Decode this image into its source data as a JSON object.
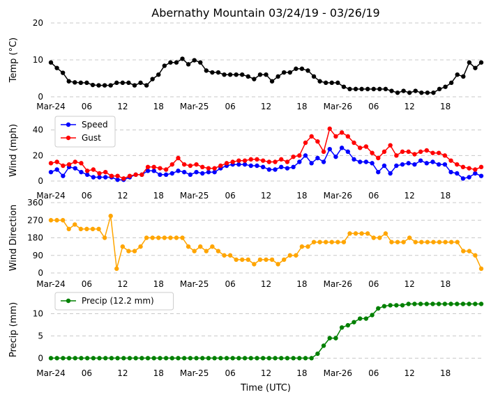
{
  "chart_data": {
    "type": "line",
    "title": "Abernathy Mountain 03/24/19 - 03/26/19",
    "xlabel": "Time (UTC)",
    "x_tick_labels": [
      "Mar-24",
      "06",
      "12",
      "18",
      "Mar-25",
      "06",
      "12",
      "18",
      "Mar-26",
      "06",
      "12",
      "18"
    ],
    "x_tick_hours": [
      0,
      6,
      12,
      18,
      24,
      30,
      36,
      42,
      48,
      54,
      60,
      66
    ],
    "x_range_hours": [
      0,
      72
    ],
    "panels": [
      {
        "ylabel": "Temp (°C)",
        "ylim": [
          0,
          20
        ],
        "yticks": [
          0,
          10,
          20
        ],
        "series": [
          {
            "name": "Temp",
            "color": "#000000",
            "legend": false,
            "values": [
              9.3,
              7.8,
              6.5,
              4.2,
              3.9,
              3.8,
              3.8,
              3.2,
              3.1,
              3.1,
              3.1,
              3.8,
              3.8,
              3.8,
              3.1,
              3.8,
              3.1,
              4.8,
              6.0,
              8.4,
              9.3,
              9.3,
              10.3,
              8.8,
              9.9,
              9.3,
              7.1,
              6.6,
              6.6,
              6.0,
              6.0,
              6.0,
              6.0,
              5.5,
              4.8,
              6.0,
              6.0,
              4.2,
              5.5,
              6.6,
              6.6,
              7.6,
              7.6,
              7.1,
              5.5,
              4.2,
              3.8,
              3.8,
              3.8,
              2.7,
              2.1,
              2.1,
              2.1,
              2.1,
              2.1,
              2.1,
              2.1,
              1.6,
              1.1,
              1.6,
              1.1,
              1.6,
              1.1,
              1.1,
              1.1,
              2.1,
              2.7,
              3.8,
              6.0,
              5.5,
              9.3,
              7.8,
              9.3
            ]
          }
        ]
      },
      {
        "ylabel": "Wind (mph)",
        "ylim": [
          0,
          48
        ],
        "yticks": [
          0,
          20,
          40
        ],
        "legend_position": "top-left",
        "series": [
          {
            "name": "Speed",
            "color": "#0000ff",
            "legend": true,
            "values": [
              7,
              9,
              4,
              11,
              10,
              7,
              5,
              3,
              3,
              3,
              3,
              1,
              1,
              3,
              5,
              5,
              8,
              8,
              5,
              5,
              6,
              8,
              7,
              5,
              7,
              6,
              7,
              7,
              10,
              12,
              13,
              13,
              13,
              12,
              12,
              11,
              9,
              9,
              11,
              10,
              11,
              15,
              20,
              14,
              18,
              15,
              25,
              19,
              26,
              23,
              17,
              15,
              15,
              14,
              7,
              12,
              6,
              12,
              13,
              14,
              13,
              16,
              14,
              15,
              13,
              13,
              7,
              6,
              2,
              3,
              6,
              4
            ]
          },
          {
            "name": "Gust",
            "color": "#ff0000",
            "legend": true,
            "values": [
              14,
              15,
              12,
              13,
              15,
              14,
              8,
              9,
              6,
              7,
              4,
              4,
              2,
              4,
              5,
              5,
              11,
              11,
              10,
              9,
              13,
              18,
              13,
              12,
              13,
              11,
              10,
              10,
              12,
              14,
              15,
              16,
              16,
              17,
              17,
              16,
              15,
              15,
              17,
              15,
              19,
              20,
              30,
              35,
              31,
              23,
              41,
              35,
              38,
              35,
              30,
              26,
              27,
              22,
              18,
              23,
              28,
              20,
              23,
              23,
              21,
              23,
              24,
              22,
              22,
              20,
              16,
              13,
              11,
              10,
              9,
              11
            ]
          }
        ]
      },
      {
        "ylabel": "Wind Direction",
        "ylim": [
          0,
          360
        ],
        "yticks": [
          0,
          90,
          180,
          270,
          360
        ],
        "series": [
          {
            "name": "Direction",
            "color": "#ffa500",
            "legend": false,
            "values": [
              270,
              270,
              270,
              225,
              248,
              225,
              225,
              225,
              225,
              180,
              292,
              22,
              135,
              112,
              112,
              135,
              180,
              180,
              180,
              180,
              180,
              180,
              180,
              135,
              112,
              135,
              112,
              135,
              112,
              90,
              90,
              68,
              68,
              68,
              45,
              68,
              68,
              68,
              45,
              68,
              90,
              90,
              135,
              135,
              158,
              158,
              158,
              158,
              158,
              158,
              202,
              202,
              202,
              202,
              180,
              180,
              202,
              158,
              158,
              158,
              180,
              158,
              158,
              158,
              158,
              158,
              158,
              158,
              158,
              112,
              112,
              90,
              22
            ]
          }
        ]
      },
      {
        "ylabel": "Precip (mm)",
        "ylim": [
          -1.2,
          14
        ],
        "yticks": [
          0,
          5,
          10
        ],
        "legend_position": "top-left",
        "series": [
          {
            "name": "Precip (12.2 mm)",
            "color": "#008000",
            "legend": true,
            "values": [
              0,
              0,
              0,
              0,
              0,
              0,
              0,
              0,
              0,
              0,
              0,
              0,
              0,
              0,
              0,
              0,
              0,
              0,
              0,
              0,
              0,
              0,
              0,
              0,
              0,
              0,
              0,
              0,
              0,
              0,
              0,
              0,
              0,
              0,
              0,
              0,
              0,
              0,
              0,
              0,
              0,
              0,
              0,
              0,
              1.0,
              2.8,
              4.5,
              4.5,
              6.9,
              7.4,
              8.1,
              8.9,
              8.9,
              9.7,
              11.2,
              11.7,
              11.9,
              11.9,
              11.9,
              12.2,
              12.2,
              12.2,
              12.2,
              12.2,
              12.2,
              12.2,
              12.2,
              12.2,
              12.2,
              12.2,
              12.2,
              12.2
            ]
          }
        ]
      }
    ]
  }
}
